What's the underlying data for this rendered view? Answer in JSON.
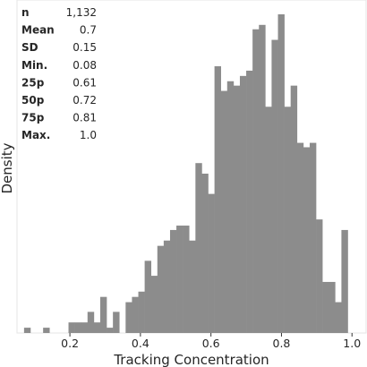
{
  "chart_data": {
    "type": "bar",
    "xlabel": "Tracking Concentration",
    "ylabel": "Density",
    "xlim": [
      0.05,
      1.04
    ],
    "ylim": [
      0,
      3.62
    ],
    "x_ticks": [
      "0.2",
      "0.4",
      "0.6",
      "0.8",
      "1.0"
    ],
    "x_tick_values": [
      0.2,
      0.4,
      0.6,
      0.8,
      1.0
    ],
    "grid": false,
    "bin_width": 0.018,
    "bin_start": 0.07,
    "values": [
      0.06,
      0.0,
      0.0,
      0.06,
      0.0,
      0.0,
      0.0,
      0.12,
      0.12,
      0.12,
      0.24,
      0.12,
      0.41,
      0.06,
      0.24,
      0.0,
      0.35,
      0.41,
      0.47,
      0.82,
      0.65,
      0.99,
      1.05,
      1.17,
      1.22,
      1.22,
      1.05,
      1.93,
      1.81,
      1.58,
      3.03,
      2.75,
      2.86,
      2.81,
      2.92,
      2.98,
      3.45,
      3.5,
      2.57,
      3.33,
      3.62,
      2.57,
      2.81,
      2.16,
      2.11,
      2.16,
      1.29,
      0.58,
      0.58,
      0.35,
      1.17
    ],
    "bar_color": "#8c8c8c",
    "stats": [
      {
        "label": "n",
        "value": "1,132"
      },
      {
        "label": "Mean",
        "value": "0.7"
      },
      {
        "label": "SD",
        "value": "0.15"
      },
      {
        "label": "Min.",
        "value": "0.08"
      },
      {
        "label": "25p",
        "value": "0.61"
      },
      {
        "label": "50p",
        "value": "0.72"
      },
      {
        "label": "75p",
        "value": "0.81"
      },
      {
        "label": "Max.",
        "value": "1.0"
      }
    ]
  }
}
